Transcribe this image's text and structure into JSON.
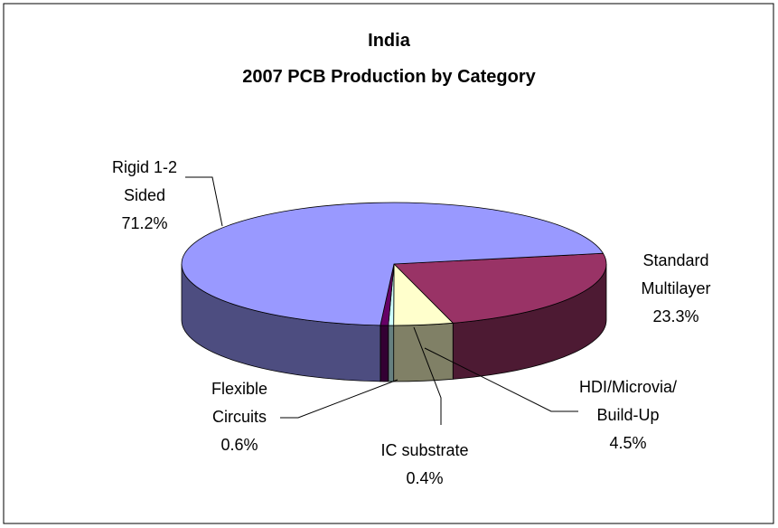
{
  "chart_data": {
    "type": "pie3d",
    "title": "India",
    "subtitle": "2007 PCB Production by Category",
    "categories": [
      "Standard\nMultilayer",
      "HDI/Microvia/\nBuild-Up",
      "IC substrate",
      "Flexible\nCircuits",
      "Rigid 1-2\nSided"
    ],
    "values": [
      23.3,
      4.5,
      0.4,
      0.6,
      71.2
    ],
    "value_labels": [
      "23.3%",
      "4.5%",
      "0.4%",
      "0.6%",
      "71.2%"
    ],
    "colors": [
      "#993366",
      "#ffffcc",
      "#ccffff",
      "#660066",
      "#9999ff"
    ]
  }
}
